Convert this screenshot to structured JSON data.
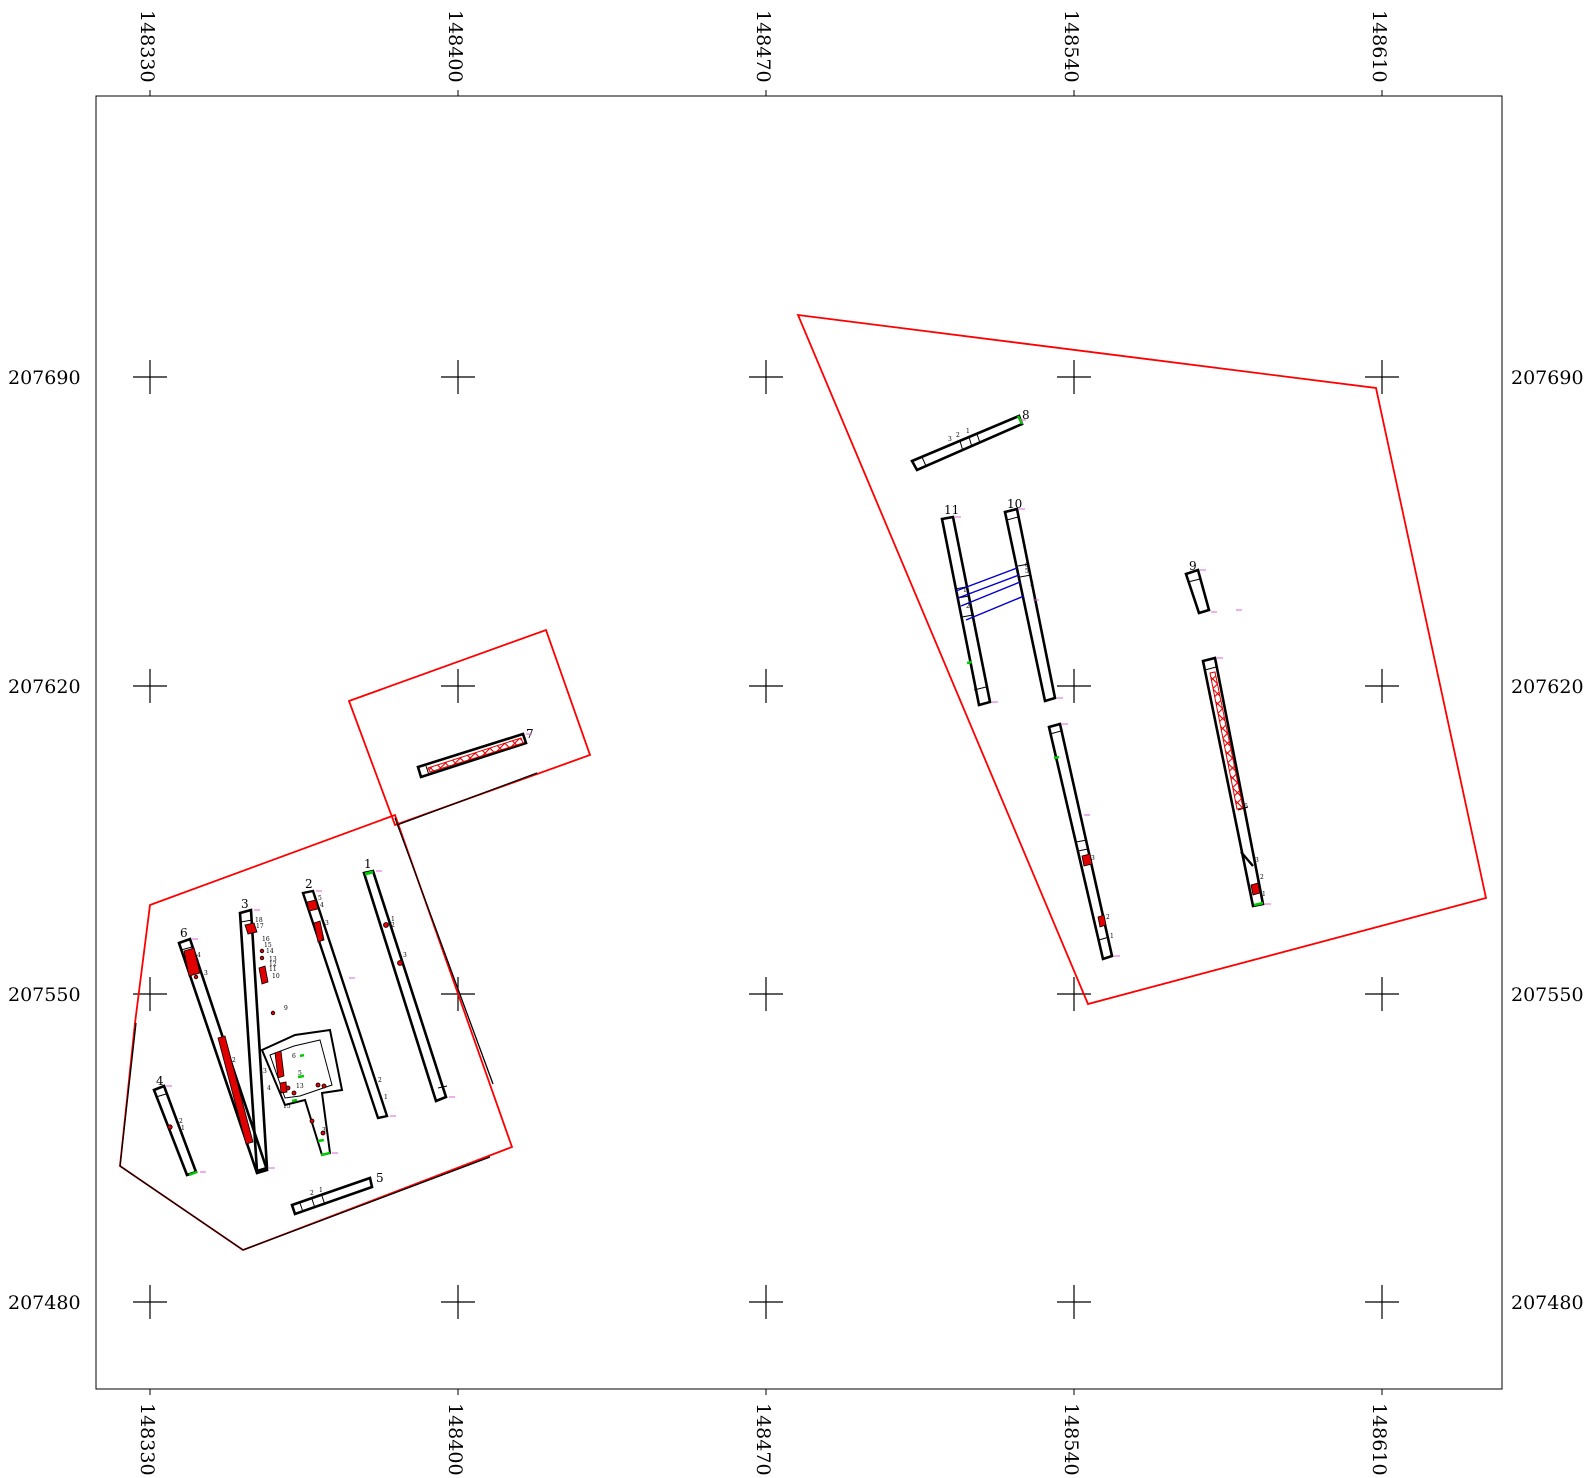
{
  "map": {
    "x_ticks": [
      "148330",
      "148400",
      "148470",
      "148540",
      "148610"
    ],
    "y_ticks": [
      "207690",
      "207620",
      "207550",
      "207480"
    ],
    "colors": {
      "boundary": "#ff0000",
      "trench_outline": "#000000",
      "feature_fill": "#e00000",
      "link_line": "#0000cc",
      "end_marker": "#00cc00",
      "small_label": "#d040d0"
    },
    "trenches": [
      {
        "id": "1",
        "label": "1"
      },
      {
        "id": "2",
        "label": "2"
      },
      {
        "id": "3",
        "label": "3"
      },
      {
        "id": "4",
        "label": "4"
      },
      {
        "id": "5",
        "label": "5"
      },
      {
        "id": "6",
        "label": "6"
      },
      {
        "id": "7",
        "label": "7"
      },
      {
        "id": "8",
        "label": "8"
      },
      {
        "id": "9",
        "label": "9"
      },
      {
        "id": "10",
        "label": "10"
      },
      {
        "id": "11",
        "label": "11"
      }
    ],
    "section_labels": [
      "1",
      "2",
      "3",
      "4",
      "5",
      "6",
      "7",
      "8",
      "9",
      "10",
      "11",
      "12",
      "13",
      "14",
      "15",
      "16",
      "17",
      "18"
    ]
  }
}
